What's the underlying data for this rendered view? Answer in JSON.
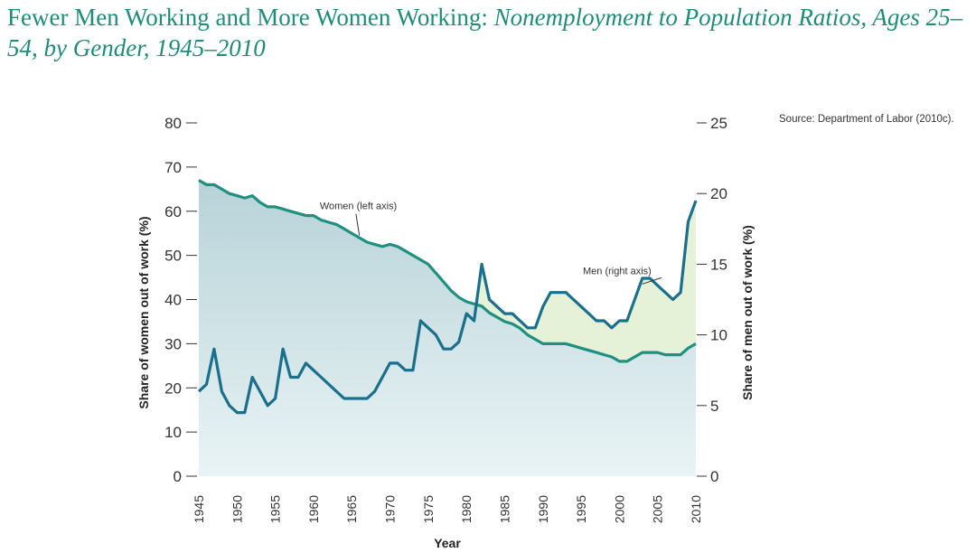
{
  "title": {
    "main": "Fewer Men Working and More Women Working: ",
    "sub": "Nonemployment to Population Ratios, Ages 25–54, by Gender, 1945–2010"
  },
  "source": "Source: Department of Labor (2010c).",
  "colors": {
    "title": "#1e8c78",
    "women_line": "#1f9080",
    "men_line": "#1a6f8c",
    "women_fill_top": "#b9d3d8",
    "women_fill_bottom": "#e6f1f4",
    "men_fill": "#e6f2d8",
    "axis": "#333333"
  },
  "chart_data": {
    "type": "line",
    "xlabel": "Year",
    "ylabel_left": "Share of women out of work (%)",
    "ylabel_right": "Share of men out of work (%)",
    "xlim": [
      1945,
      2010
    ],
    "ylim_left": [
      0,
      80
    ],
    "ylim_right": [
      0,
      25
    ],
    "x_ticks": [
      "1945",
      "1950",
      "1955",
      "1960",
      "1965",
      "1970",
      "1975",
      "1980",
      "1985",
      "1990",
      "1995",
      "2000",
      "2005",
      "2010"
    ],
    "y_ticks_left": [
      "0",
      "10",
      "20",
      "30",
      "40",
      "50",
      "60",
      "70",
      "80"
    ],
    "y_ticks_right": [
      "0",
      "5",
      "10",
      "15",
      "20",
      "25"
    ],
    "grid": false,
    "annotations": [
      {
        "text": "Women (left axis)",
        "x": 1962,
        "y": 59,
        "axis": "left"
      },
      {
        "text": "Men (right axis)",
        "x": 1997,
        "y": 14.3,
        "axis": "right"
      }
    ],
    "series": [
      {
        "name": "Women",
        "axis": "left",
        "x": [
          1945,
          1946,
          1947,
          1948,
          1949,
          1950,
          1951,
          1952,
          1953,
          1954,
          1955,
          1956,
          1957,
          1958,
          1959,
          1960,
          1961,
          1962,
          1963,
          1964,
          1965,
          1966,
          1967,
          1968,
          1969,
          1970,
          1971,
          1972,
          1973,
          1974,
          1975,
          1976,
          1977,
          1978,
          1979,
          1980,
          1981,
          1982,
          1983,
          1984,
          1985,
          1986,
          1987,
          1988,
          1989,
          1990,
          1991,
          1992,
          1993,
          1994,
          1995,
          1996,
          1997,
          1998,
          1999,
          2000,
          2001,
          2002,
          2003,
          2004,
          2005,
          2006,
          2007,
          2008,
          2009,
          2010
        ],
        "values": [
          67,
          66,
          66,
          65,
          64,
          63.5,
          63,
          63.5,
          62,
          61,
          61,
          60.5,
          60,
          59.5,
          59,
          59,
          58,
          57.5,
          57,
          56,
          55,
          54,
          53,
          52.5,
          52,
          52.5,
          52,
          51,
          50,
          49,
          48,
          46,
          44,
          42,
          40.5,
          39.5,
          39,
          38.5,
          37,
          36,
          35,
          34.5,
          33.5,
          32,
          31,
          30,
          30,
          30,
          30,
          29.5,
          29,
          28.5,
          28,
          27.5,
          27,
          26,
          26,
          27,
          28,
          28,
          28,
          27.5,
          27.5,
          27.5,
          29,
          30
        ]
      },
      {
        "name": "Men",
        "axis": "right",
        "x": [
          1945,
          1946,
          1947,
          1948,
          1949,
          1950,
          1951,
          1952,
          1953,
          1954,
          1955,
          1956,
          1957,
          1958,
          1959,
          1960,
          1961,
          1962,
          1963,
          1964,
          1965,
          1966,
          1967,
          1968,
          1969,
          1970,
          1971,
          1972,
          1973,
          1974,
          1975,
          1976,
          1977,
          1978,
          1979,
          1980,
          1981,
          1982,
          1983,
          1984,
          1985,
          1986,
          1987,
          1988,
          1989,
          1990,
          1991,
          1992,
          1993,
          1994,
          1995,
          1996,
          1997,
          1998,
          1999,
          2000,
          2001,
          2002,
          2003,
          2004,
          2005,
          2006,
          2007,
          2008,
          2009,
          2010
        ],
        "values": [
          6,
          6.5,
          9,
          6,
          5,
          4.5,
          4.5,
          7,
          6,
          5,
          5.5,
          9,
          7,
          7,
          8,
          7.5,
          7,
          6.5,
          6,
          5.5,
          5.5,
          5.5,
          5.5,
          6,
          7,
          8,
          8,
          7.5,
          7.5,
          11,
          10.5,
          10,
          9,
          9,
          9.5,
          11.5,
          11,
          15,
          12.5,
          12,
          11.5,
          11.5,
          11,
          10.5,
          10.5,
          12,
          13,
          13,
          13,
          12.5,
          12,
          11.5,
          11,
          11,
          10.5,
          11,
          11,
          12.5,
          14,
          14,
          13.5,
          13,
          12.5,
          13,
          18,
          19.5
        ]
      }
    ]
  }
}
